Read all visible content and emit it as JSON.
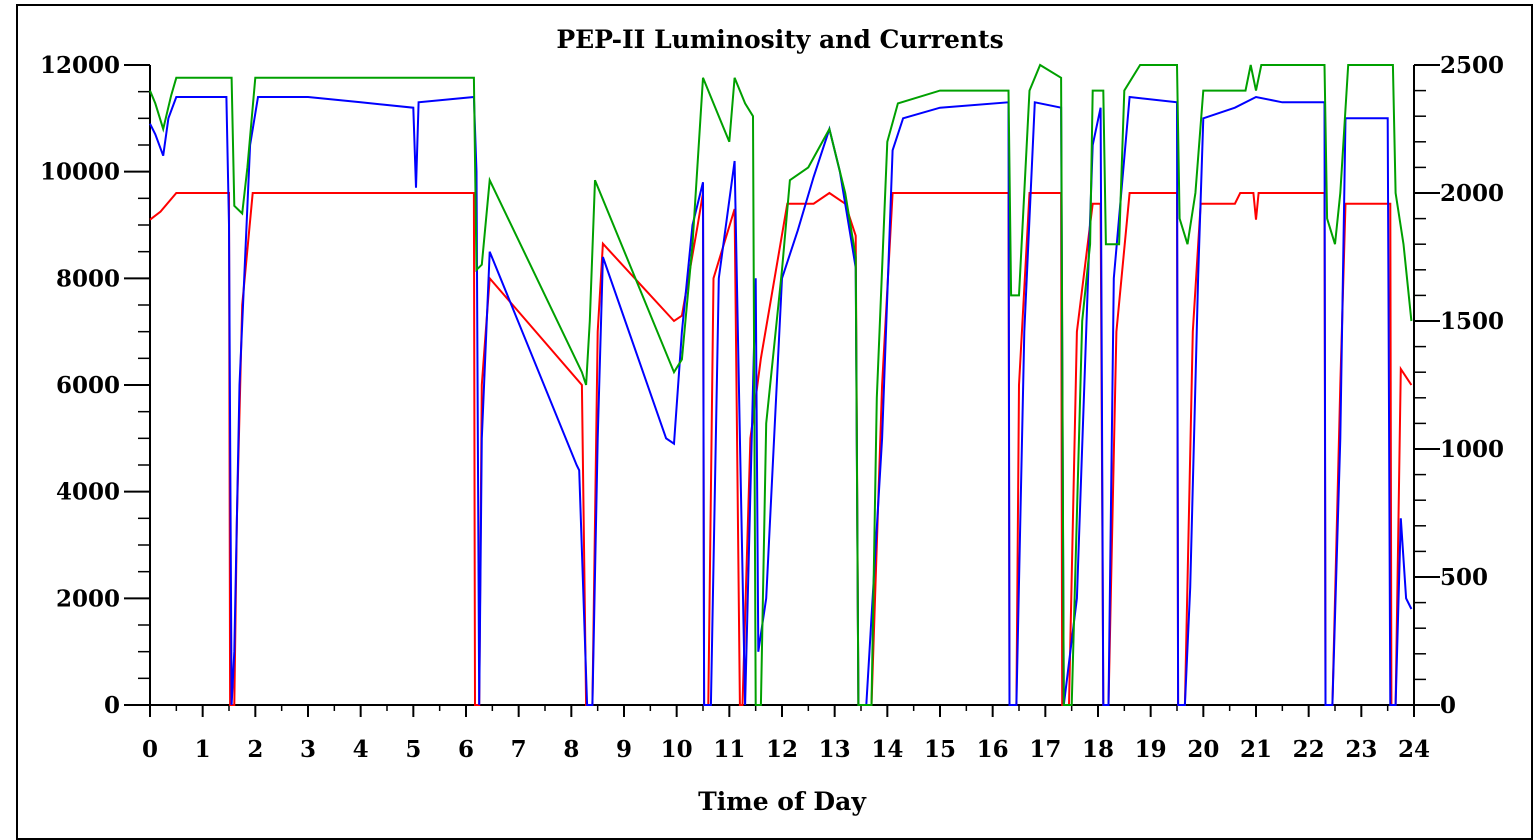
{
  "chart_data": {
    "type": "line",
    "title": "PEP-II Luminosity and Currents",
    "xlabel": "Time of Day",
    "ylabel": "",
    "ylabel_right": "",
    "xlim": [
      0,
      24
    ],
    "ylim": [
      0,
      12000
    ],
    "ylim_right": [
      0,
      2500
    ],
    "x_ticks": [
      "0",
      "1",
      "2",
      "3",
      "4",
      "5",
      "6",
      "7",
      "8",
      "9",
      "10",
      "11",
      "12",
      "13",
      "14",
      "15",
      "16",
      "17",
      "18",
      "19",
      "20",
      "21",
      "22",
      "23",
      "24"
    ],
    "y_ticks": [
      "0",
      "2000",
      "4000",
      "6000",
      "8000",
      "10000",
      "12000"
    ],
    "y_ticks_right": [
      "0",
      "500",
      "1000",
      "1500",
      "2000",
      "2500"
    ],
    "grid": false,
    "series": [
      {
        "color": "#ff0000",
        "axis": "left",
        "points": [
          [
            0,
            9100
          ],
          [
            0.2,
            9250
          ],
          [
            0.5,
            9600
          ],
          [
            1.5,
            9600
          ],
          [
            1.52,
            0
          ],
          [
            1.6,
            0
          ],
          [
            1.65,
            3500
          ],
          [
            1.75,
            7500
          ],
          [
            1.95,
            9600
          ],
          [
            6.15,
            9600
          ],
          [
            6.17,
            0
          ],
          [
            6.25,
            0
          ],
          [
            6.3,
            6000
          ],
          [
            6.45,
            8000
          ],
          [
            8.2,
            6000
          ],
          [
            8.28,
            0
          ],
          [
            8.4,
            0
          ],
          [
            8.5,
            7000
          ],
          [
            8.6,
            8650
          ],
          [
            9.95,
            7200
          ],
          [
            10.1,
            7300
          ],
          [
            10.4,
            9000
          ],
          [
            10.5,
            9600
          ],
          [
            10.52,
            0
          ],
          [
            10.6,
            0
          ],
          [
            10.7,
            8000
          ],
          [
            11.1,
            9300
          ],
          [
            11.2,
            0
          ],
          [
            11.25,
            0
          ],
          [
            11.4,
            5000
          ],
          [
            11.6,
            6500
          ],
          [
            12.1,
            9400
          ],
          [
            12.6,
            9400
          ],
          [
            12.9,
            9600
          ],
          [
            13.2,
            9400
          ],
          [
            13.4,
            8800
          ],
          [
            13.45,
            0
          ],
          [
            13.7,
            0
          ],
          [
            13.9,
            6000
          ],
          [
            14.1,
            9600
          ],
          [
            16.3,
            9600
          ],
          [
            16.32,
            0
          ],
          [
            16.45,
            0
          ],
          [
            16.5,
            6000
          ],
          [
            16.7,
            9600
          ],
          [
            17.3,
            9600
          ],
          [
            17.32,
            0
          ],
          [
            17.45,
            0
          ],
          [
            17.6,
            7000
          ],
          [
            17.9,
            9400
          ],
          [
            18.05,
            9400
          ],
          [
            18.1,
            0
          ],
          [
            18.2,
            0
          ],
          [
            18.35,
            7000
          ],
          [
            18.6,
            9600
          ],
          [
            19.5,
            9600
          ],
          [
            19.52,
            0
          ],
          [
            19.65,
            0
          ],
          [
            19.8,
            7000
          ],
          [
            19.95,
            9400
          ],
          [
            20.6,
            9400
          ],
          [
            20.7,
            9600
          ],
          [
            20.95,
            9600
          ],
          [
            21.0,
            9100
          ],
          [
            21.05,
            9600
          ],
          [
            22.3,
            9600
          ],
          [
            22.32,
            0
          ],
          [
            22.45,
            0
          ],
          [
            22.6,
            6000
          ],
          [
            22.7,
            9400
          ],
          [
            23.55,
            9400
          ],
          [
            23.57,
            0
          ],
          [
            23.65,
            0
          ],
          [
            23.75,
            6300
          ],
          [
            23.95,
            6000
          ]
        ]
      },
      {
        "color": "#0000ff",
        "axis": "left",
        "points": [
          [
            0,
            10900
          ],
          [
            0.1,
            10700
          ],
          [
            0.25,
            10300
          ],
          [
            0.35,
            11000
          ],
          [
            0.5,
            11400
          ],
          [
            1.45,
            11400
          ],
          [
            1.5,
            9000
          ],
          [
            1.55,
            0
          ],
          [
            1.6,
            1000
          ],
          [
            1.7,
            6000
          ],
          [
            1.9,
            10500
          ],
          [
            2.05,
            11400
          ],
          [
            3.0,
            11400
          ],
          [
            4.0,
            11300
          ],
          [
            5.0,
            11200
          ],
          [
            5.05,
            9700
          ],
          [
            5.1,
            11300
          ],
          [
            6.15,
            11400
          ],
          [
            6.2,
            10000
          ],
          [
            6.25,
            0
          ],
          [
            6.3,
            5000
          ],
          [
            6.45,
            8500
          ],
          [
            8.1,
            4500
          ],
          [
            8.15,
            4400
          ],
          [
            8.3,
            0
          ],
          [
            8.4,
            0
          ],
          [
            8.5,
            5000
          ],
          [
            8.6,
            8400
          ],
          [
            9.8,
            5000
          ],
          [
            9.95,
            4900
          ],
          [
            10.1,
            7000
          ],
          [
            10.3,
            9000
          ],
          [
            10.5,
            9800
          ],
          [
            10.52,
            0
          ],
          [
            10.65,
            0
          ],
          [
            10.8,
            8000
          ],
          [
            11.1,
            10200
          ],
          [
            11.2,
            5000
          ],
          [
            11.3,
            0
          ],
          [
            11.4,
            4000
          ],
          [
            11.5,
            8000
          ],
          [
            11.55,
            1000
          ],
          [
            11.7,
            2000
          ],
          [
            12.0,
            8000
          ],
          [
            12.3,
            8900
          ],
          [
            12.6,
            9900
          ],
          [
            12.9,
            10800
          ],
          [
            13.1,
            10000
          ],
          [
            13.3,
            8800
          ],
          [
            13.4,
            8200
          ],
          [
            13.45,
            0
          ],
          [
            13.6,
            0
          ],
          [
            13.9,
            5000
          ],
          [
            14.1,
            10400
          ],
          [
            14.3,
            11000
          ],
          [
            15.0,
            11200
          ],
          [
            16.3,
            11300
          ],
          [
            16.32,
            0
          ],
          [
            16.45,
            0
          ],
          [
            16.6,
            7000
          ],
          [
            16.8,
            11300
          ],
          [
            17.3,
            11200
          ],
          [
            17.35,
            0
          ],
          [
            17.6,
            2000
          ],
          [
            17.9,
            10500
          ],
          [
            18.05,
            11200
          ],
          [
            18.1,
            0
          ],
          [
            18.2,
            0
          ],
          [
            18.3,
            8000
          ],
          [
            18.6,
            11400
          ],
          [
            19.5,
            11300
          ],
          [
            19.52,
            0
          ],
          [
            19.65,
            0
          ],
          [
            19.75,
            2200
          ],
          [
            19.9,
            8000
          ],
          [
            20.0,
            11000
          ],
          [
            20.6,
            11200
          ],
          [
            21.0,
            11400
          ],
          [
            21.5,
            11300
          ],
          [
            22.3,
            11300
          ],
          [
            22.32,
            0
          ],
          [
            22.45,
            0
          ],
          [
            22.6,
            5000
          ],
          [
            22.7,
            11000
          ],
          [
            23.5,
            11000
          ],
          [
            23.55,
            0
          ],
          [
            23.65,
            0
          ],
          [
            23.75,
            3500
          ],
          [
            23.85,
            2000
          ],
          [
            23.95,
            1800
          ]
        ]
      },
      {
        "color": "#00a000",
        "axis": "right",
        "points": [
          [
            0,
            2400
          ],
          [
            0.1,
            2350
          ],
          [
            0.25,
            2250
          ],
          [
            0.4,
            2380
          ],
          [
            0.5,
            2450
          ],
          [
            1.55,
            2450
          ],
          [
            1.6,
            1950
          ],
          [
            1.75,
            1920
          ],
          [
            1.85,
            2100
          ],
          [
            2.0,
            2450
          ],
          [
            6.15,
            2450
          ],
          [
            6.2,
            1700
          ],
          [
            6.3,
            1720
          ],
          [
            6.45,
            2050
          ],
          [
            8.2,
            1300
          ],
          [
            8.28,
            1250
          ],
          [
            8.35,
            1500
          ],
          [
            8.45,
            2050
          ],
          [
            9.95,
            1300
          ],
          [
            10.1,
            1350
          ],
          [
            10.3,
            1800
          ],
          [
            10.5,
            2450
          ],
          [
            10.7,
            2350
          ],
          [
            11.0,
            2200
          ],
          [
            11.1,
            2450
          ],
          [
            11.3,
            2350
          ],
          [
            11.45,
            2300
          ],
          [
            11.5,
            0
          ],
          [
            11.6,
            0
          ],
          [
            11.7,
            1100
          ],
          [
            12.0,
            1700
          ],
          [
            12.15,
            2050
          ],
          [
            12.5,
            2100
          ],
          [
            12.9,
            2250
          ],
          [
            13.2,
            2000
          ],
          [
            13.4,
            1750
          ],
          [
            13.45,
            0
          ],
          [
            13.7,
            0
          ],
          [
            13.8,
            1200
          ],
          [
            14.0,
            2200
          ],
          [
            14.2,
            2350
          ],
          [
            15.0,
            2400
          ],
          [
            16.3,
            2400
          ],
          [
            16.35,
            1600
          ],
          [
            16.5,
            1600
          ],
          [
            16.7,
            2400
          ],
          [
            16.9,
            2500
          ],
          [
            17.3,
            2450
          ],
          [
            17.35,
            0
          ],
          [
            17.5,
            0
          ],
          [
            17.7,
            1500
          ],
          [
            17.85,
            1800
          ],
          [
            17.9,
            2400
          ],
          [
            18.1,
            2400
          ],
          [
            18.15,
            1800
          ],
          [
            18.4,
            1800
          ],
          [
            18.5,
            2400
          ],
          [
            18.8,
            2500
          ],
          [
            19.5,
            2500
          ],
          [
            19.55,
            1900
          ],
          [
            19.7,
            1800
          ],
          [
            19.85,
            2000
          ],
          [
            20.0,
            2400
          ],
          [
            20.8,
            2400
          ],
          [
            20.9,
            2500
          ],
          [
            21.0,
            2400
          ],
          [
            21.1,
            2500
          ],
          [
            22.3,
            2500
          ],
          [
            22.35,
            1900
          ],
          [
            22.5,
            1800
          ],
          [
            22.6,
            2000
          ],
          [
            22.75,
            2500
          ],
          [
            23.6,
            2500
          ],
          [
            23.65,
            2000
          ],
          [
            23.8,
            1800
          ],
          [
            23.95,
            1500
          ]
        ]
      }
    ]
  }
}
